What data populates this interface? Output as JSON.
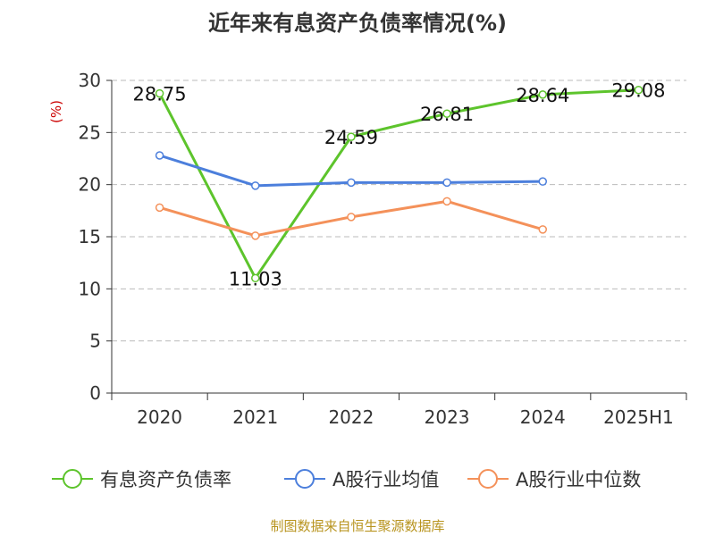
{
  "header": {
    "title": "近年来有息资产负债率情况(%)"
  },
  "footer": {
    "credit": "制图数据来自恒生聚源数据库"
  },
  "colors": {
    "company": "#5dc42c",
    "mean": "#4c7fdc",
    "median": "#f4915a",
    "grid": "#bbbbbb",
    "axis": "#333333",
    "unit": "#cc0000"
  },
  "chart_data": {
    "type": "line",
    "title": "近年来有息资产负债率情况(%)",
    "ylabel": "(%)",
    "ylim": [
      0,
      30
    ],
    "yticks": [
      0,
      5,
      10,
      15,
      20,
      25,
      30
    ],
    "grid": true,
    "legend_position": "bottom",
    "categories": [
      "2020",
      "2021",
      "2022",
      "2023",
      "2024",
      "2025H1"
    ],
    "series": [
      {
        "name": "有息资产负债率",
        "color": "#5dc42c",
        "values": [
          28.75,
          11.03,
          24.59,
          26.81,
          28.64,
          29.08
        ],
        "labels": [
          "28.75",
          "11.03",
          "24.59",
          "26.81",
          "28.64",
          "29.08"
        ]
      },
      {
        "name": "A股行业均值",
        "color": "#4c7fdc",
        "values": [
          22.8,
          19.9,
          20.2,
          20.2,
          20.3,
          null
        ]
      },
      {
        "name": "A股行业中位数",
        "color": "#f4915a",
        "values": [
          17.8,
          15.1,
          16.9,
          18.4,
          15.7,
          null
        ]
      }
    ]
  }
}
